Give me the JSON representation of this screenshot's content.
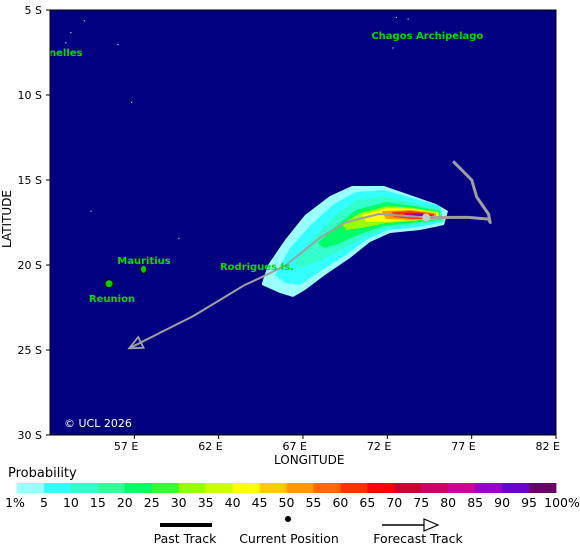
{
  "map": {
    "x_axis_title": "LONGITUDE",
    "y_axis_title": "LATITUDE",
    "lat_ticks": [
      "5 S",
      "10 S",
      "15 S",
      "20 S",
      "25 S",
      "30 S"
    ],
    "lon_ticks": [
      "57 E",
      "62 E",
      "67 E",
      "72 E",
      "77 E",
      "82 E"
    ],
    "lon_range_deg_e": [
      52,
      82
    ],
    "lat_range_deg_s": [
      5,
      30
    ],
    "copyright": "© UCL 2026",
    "places": [
      {
        "name": "Chagos Archipelago",
        "lat": -6.7,
        "lon": 72.0
      },
      {
        "name": "nelles",
        "lat": -7.5,
        "lon": 53.0
      },
      {
        "name": "Mauritius",
        "lat": -20.2,
        "lon": 57.5
      },
      {
        "name": "Reunion",
        "lat": -21.1,
        "lon": 55.5
      },
      {
        "name": "Rodrigues Is.",
        "lat": -19.7,
        "lon": 63.4
      }
    ],
    "current_position": {
      "lat": -17.2,
      "lon": 74.3
    },
    "past_track": [
      [
        75.9,
        -13.9
      ],
      [
        77.0,
        -15.0
      ],
      [
        77.3,
        -16.0
      ],
      [
        78.0,
        -17.0
      ],
      [
        78.1,
        -17.5
      ],
      [
        78.0,
        -17.3
      ],
      [
        76.8,
        -17.2
      ],
      [
        75.5,
        -17.2
      ],
      [
        74.3,
        -17.2
      ]
    ],
    "forecast_track": [
      [
        74.3,
        -17.2
      ],
      [
        71.5,
        -17.0
      ],
      [
        69.5,
        -17.5
      ],
      [
        68.0,
        -18.4
      ],
      [
        66.0,
        -20.0
      ],
      [
        64.8,
        -20.6
      ],
      [
        63.5,
        -21.2
      ],
      [
        62.5,
        -21.8
      ],
      [
        60.5,
        -23.0
      ],
      [
        58.5,
        -24.0
      ],
      [
        56.7,
        -24.9
      ]
    ],
    "colors": {
      "ocean": "#000080",
      "land": "#00cc00",
      "track": "#a0a0a0",
      "place_label": "#00dd00"
    }
  },
  "probability_scale": {
    "title": "Probability",
    "labels": [
      "1%",
      "5",
      "10",
      "15",
      "20",
      "25",
      "30",
      "35",
      "40",
      "45",
      "50",
      "55",
      "60",
      "65",
      "70",
      "75",
      "80",
      "85",
      "90",
      "95",
      "100%"
    ],
    "colors": [
      "#99ffff",
      "#33ffff",
      "#33ffcc",
      "#33ff99",
      "#00ff66",
      "#33ff33",
      "#99ff00",
      "#ccff00",
      "#ffff00",
      "#ffcc00",
      "#ff9900",
      "#ff6600",
      "#ff3300",
      "#ff0000",
      "#cc0033",
      "#cc0066",
      "#cc0099",
      "#9900cc",
      "#6600cc",
      "#660066"
    ]
  },
  "legend": {
    "past_track_label": "Past Track",
    "current_position_label": "Current Position",
    "forecast_track_label": "Forecast Track"
  }
}
